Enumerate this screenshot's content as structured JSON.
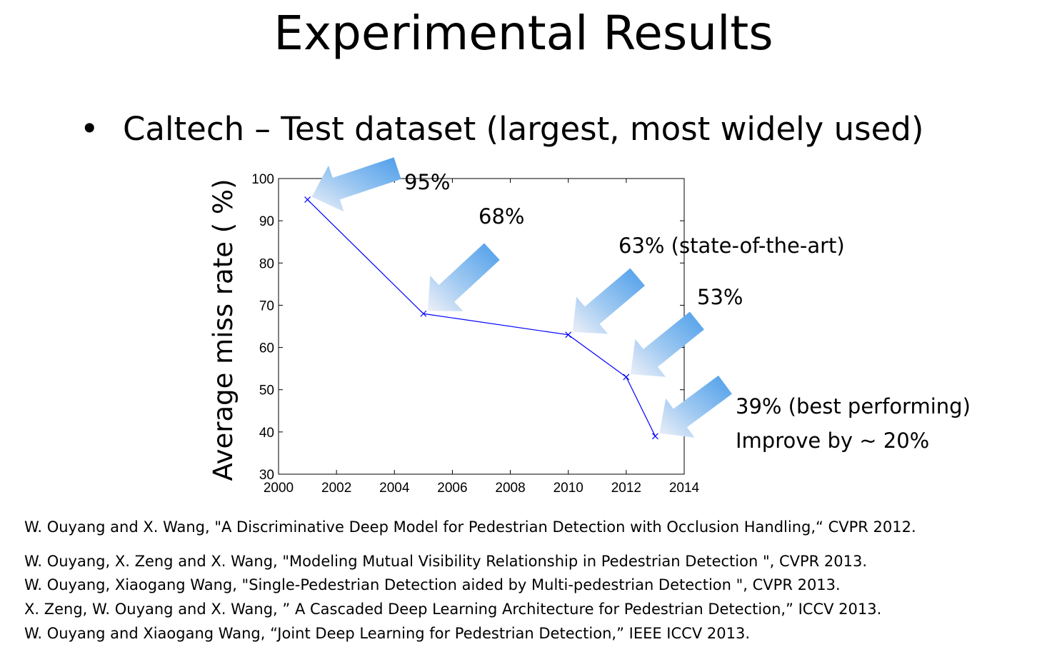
{
  "slide": {
    "title": "Experimental Results",
    "bullet": "Caltech – Test dataset (largest, most widely used)"
  },
  "chart_data": {
    "type": "line",
    "title": "",
    "xlabel": "",
    "ylabel": "Average miss rate ( %)",
    "xlim": [
      2000,
      2014
    ],
    "ylim": [
      30,
      100
    ],
    "xticks": [
      2000,
      2002,
      2004,
      2006,
      2008,
      2010,
      2012,
      2014
    ],
    "yticks": [
      30,
      40,
      50,
      60,
      70,
      80,
      90,
      100
    ],
    "grid": false,
    "series": [
      {
        "color": "#0000ff",
        "marker": "x",
        "x": [
          2001,
          2005,
          2010,
          2012,
          2013
        ],
        "y": [
          95,
          68,
          63,
          53,
          39
        ]
      }
    ],
    "annotations": [
      {
        "text": "95%"
      },
      {
        "text": "68%"
      },
      {
        "text": "63% (state-of-the-art)"
      },
      {
        "text": "53%"
      },
      {
        "text": "39% (best performing)"
      },
      {
        "text": "Improve by ~ 20%"
      }
    ]
  },
  "references": [
    "W. Ouyang and X. Wang, \"A Discriminative Deep Model for Pedestrian Detection with Occlusion Handling,“ CVPR 2012.",
    "W. Ouyang, X. Zeng and X. Wang, \"Modeling Mutual Visibility Relationship in Pedestrian Detection \", CVPR 2013.",
    "W. Ouyang, Xiaogang Wang, \"Single-Pedestrian Detection aided by Multi-pedestrian Detection \", CVPR 2013.",
    "X. Zeng, W. Ouyang and X. Wang, ” A Cascaded Deep Learning Architecture for Pedestrian Detection,” ICCV 2013.",
    "W. Ouyang and Xiaogang Wang, “Joint Deep Learning for Pedestrian Detection,” IEEE ICCV 2013."
  ]
}
